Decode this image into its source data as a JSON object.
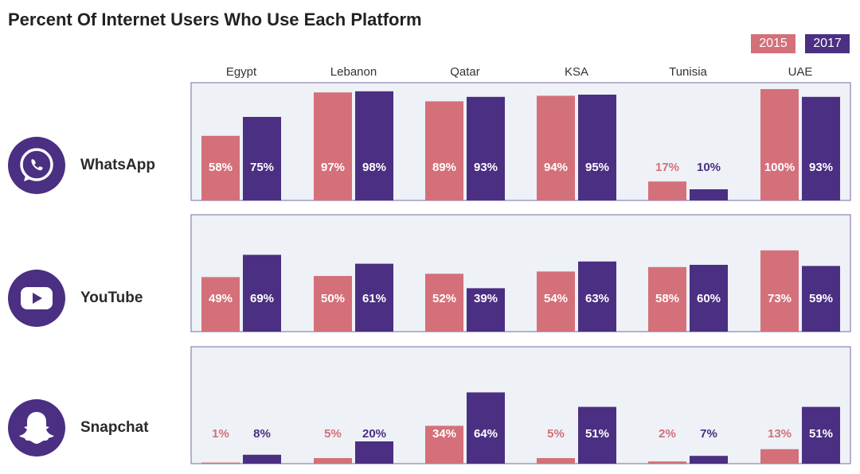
{
  "title": "Percent Of Internet Users Who Use Each Platform",
  "legend": [
    {
      "label": "2015",
      "color": "#d4707a"
    },
    {
      "label": "2017",
      "color": "#4b2f82"
    }
  ],
  "icons": {
    "WhatsApp": "whatsapp-icon",
    "YouTube": "youtube-icon",
    "Snapchat": "snapchat-icon"
  },
  "colors": {
    "panel_bg": "#eef1f6",
    "panel_border": "#8a82b8",
    "label_light": "#ffffff"
  },
  "chart_data": {
    "type": "bar",
    "title": "Percent Of Internet Users Who Use Each Platform",
    "categories": [
      "Egypt",
      "Lebanon",
      "Qatar",
      "KSA",
      "Tunisia",
      "UAE"
    ],
    "ylim": [
      0,
      100
    ],
    "legend_position": "top-right",
    "grid": false,
    "panels": [
      {
        "platform": "WhatsApp",
        "series": [
          {
            "name": "2015",
            "values": [
              58,
              97,
              89,
              94,
              17,
              100
            ]
          },
          {
            "name": "2017",
            "values": [
              75,
              98,
              93,
              95,
              10,
              93
            ]
          }
        ]
      },
      {
        "platform": "YouTube",
        "series": [
          {
            "name": "2015",
            "values": [
              49,
              50,
              52,
              54,
              58,
              73
            ]
          },
          {
            "name": "2017",
            "values": [
              69,
              61,
              39,
              63,
              60,
              59
            ]
          }
        ]
      },
      {
        "platform": "Snapchat",
        "series": [
          {
            "name": "2015",
            "values": [
              1,
              5,
              34,
              5,
              2,
              13
            ]
          },
          {
            "name": "2017",
            "values": [
              8,
              20,
              64,
              51,
              7,
              51
            ]
          }
        ]
      }
    ]
  }
}
